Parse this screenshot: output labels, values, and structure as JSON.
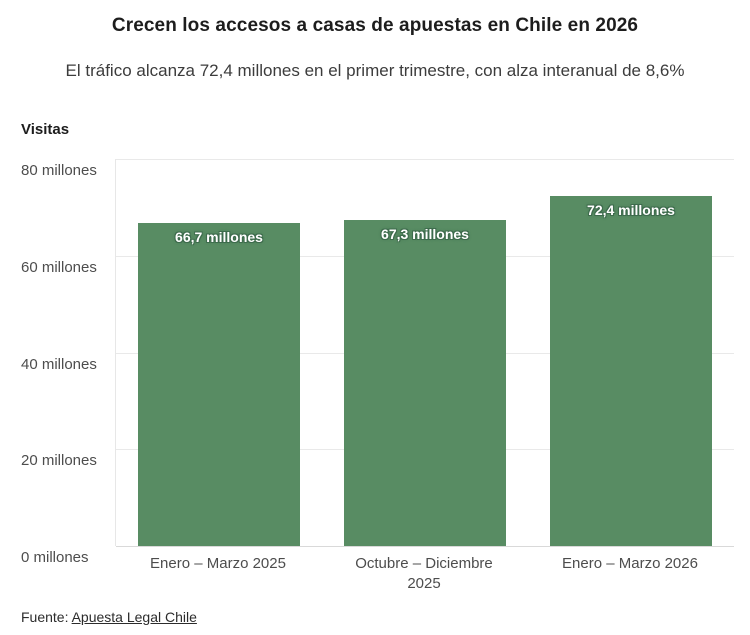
{
  "header": {
    "title": "Crecen los accesos a casas de apuestas en Chile en 2026",
    "subtitle": "El tráfico alcanza 72,4 millones en el primer trimestre, con alza interanual de 8,6%"
  },
  "chart_data": {
    "type": "bar",
    "title": "Crecen los accesos a casas de apuestas en Chile en 2026",
    "subtitle": "El tráfico alcanza 72,4 millones en el primer trimestre, con alza interanual de 8,6%",
    "ylabel": "Visitas",
    "xlabel": "",
    "categories": [
      "Enero – Marzo 2025",
      "Octubre – Diciembre\n2025",
      "Enero – Marzo 2026"
    ],
    "values": [
      66.7,
      67.3,
      72.4
    ],
    "bar_value_labels": [
      "66,7 millones",
      "67,3 millones",
      "72,4 millones"
    ],
    "ylim": [
      0,
      80
    ],
    "yticks": [
      0,
      20,
      40,
      60,
      80
    ],
    "ytick_labels": [
      "0 millones",
      "20 millones",
      "40 millones",
      "60 millones",
      "80 millones"
    ],
    "grid": true,
    "legend": false,
    "bar_color": "#588c63",
    "bar_label_color": "#ffffff"
  },
  "footer": {
    "source_prefix": "Fuente: ",
    "source_link": "Apuesta Legal Chile"
  }
}
